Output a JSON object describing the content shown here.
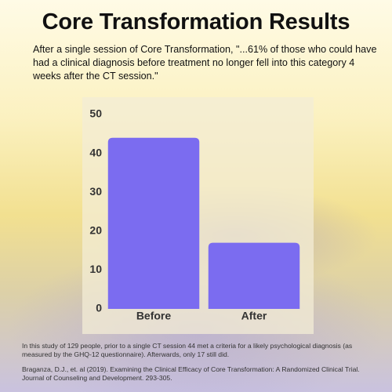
{
  "chart_data": {
    "type": "bar",
    "title": "Core Transformation Results",
    "subtitle": "After a single session of Core Transformation, \"...61% of those who could have had a clinical diagnosis before treatment no longer fell into this category 4 weeks after the CT session.\"",
    "categories": [
      "Before",
      "After"
    ],
    "values": [
      44,
      17
    ],
    "color": "#7b6cf0",
    "ylim": [
      0,
      50
    ],
    "yticks": [
      0,
      10,
      20,
      30,
      40,
      50
    ],
    "grid": false,
    "note": "In this study of 129 people, prior to a single CT session 44 met a criteria for a likely psychological diagnosis (as measured by the GHQ-12 questionnaire). Afterwards, only 17 still did.",
    "citation": "Braganza, D.J., et. al (2019). Examining the Clinical Efficacy of Core Transformation: A Randomized Clinical Trial. Journal of Counseling and Development. 293-305."
  }
}
